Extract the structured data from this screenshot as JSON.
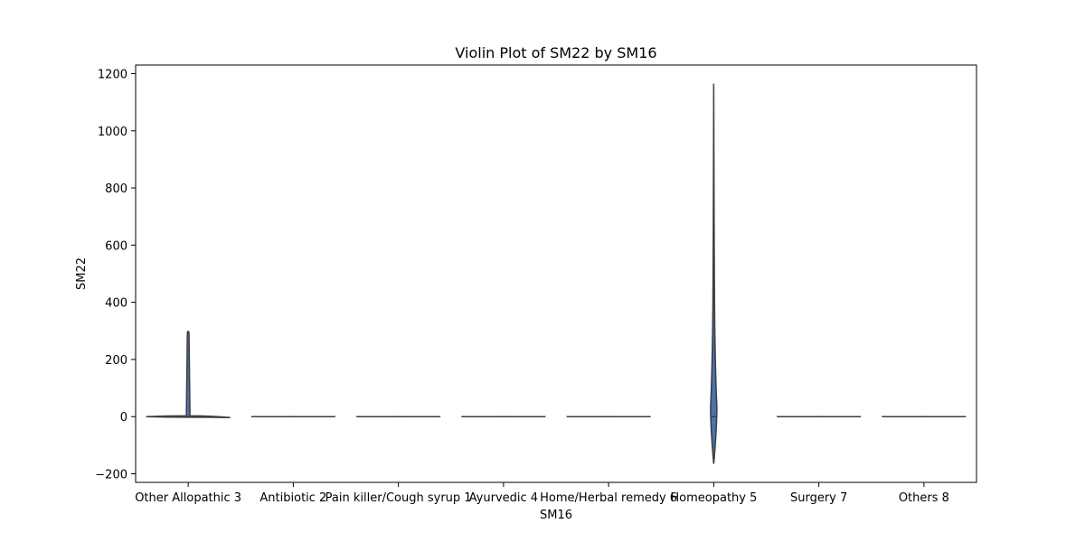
{
  "chart_data": {
    "type": "violin",
    "title": "Violin Plot of SM22 by SM16",
    "xlabel": "SM16",
    "ylabel": "SM22",
    "categories": [
      "Other Allopathic 3",
      "Antibiotic 2",
      "Pain killer/Cough syrup 1",
      "Ayurvedic 4",
      "Home/Herbal remedy 6",
      "Homeopathy 5",
      "Surgery 7",
      "Others 8"
    ],
    "ylim": [
      -230,
      1230
    ],
    "yticks": [
      -200,
      0,
      200,
      400,
      600,
      800,
      1000,
      1200
    ],
    "ytick_labels": [
      "−200",
      "0",
      "200",
      "400",
      "600",
      "800",
      "1000",
      "1200"
    ],
    "violins": [
      {
        "category": "Other Allopathic 3",
        "min": -2,
        "max": 300,
        "median": 0
      },
      {
        "category": "Antibiotic 2",
        "min": 0,
        "max": 0,
        "median": 0
      },
      {
        "category": "Pain killer/Cough syrup 1",
        "min": 0,
        "max": 0,
        "median": 0
      },
      {
        "category": "Ayurvedic 4",
        "min": 0,
        "max": 0,
        "median": 0
      },
      {
        "category": "Home/Herbal remedy 6",
        "min": 0,
        "max": 0,
        "median": 0
      },
      {
        "category": "Homeopathy 5",
        "min": -165,
        "max": 1165,
        "median": 0
      },
      {
        "category": "Surgery 7",
        "min": 0,
        "max": 0,
        "median": 0
      },
      {
        "category": "Others 8",
        "min": 0,
        "max": 0,
        "median": 0
      }
    ],
    "grid": false,
    "colors": {
      "violin_fill": "#4c72b0",
      "violin_edge": "#3d3d3d"
    }
  }
}
